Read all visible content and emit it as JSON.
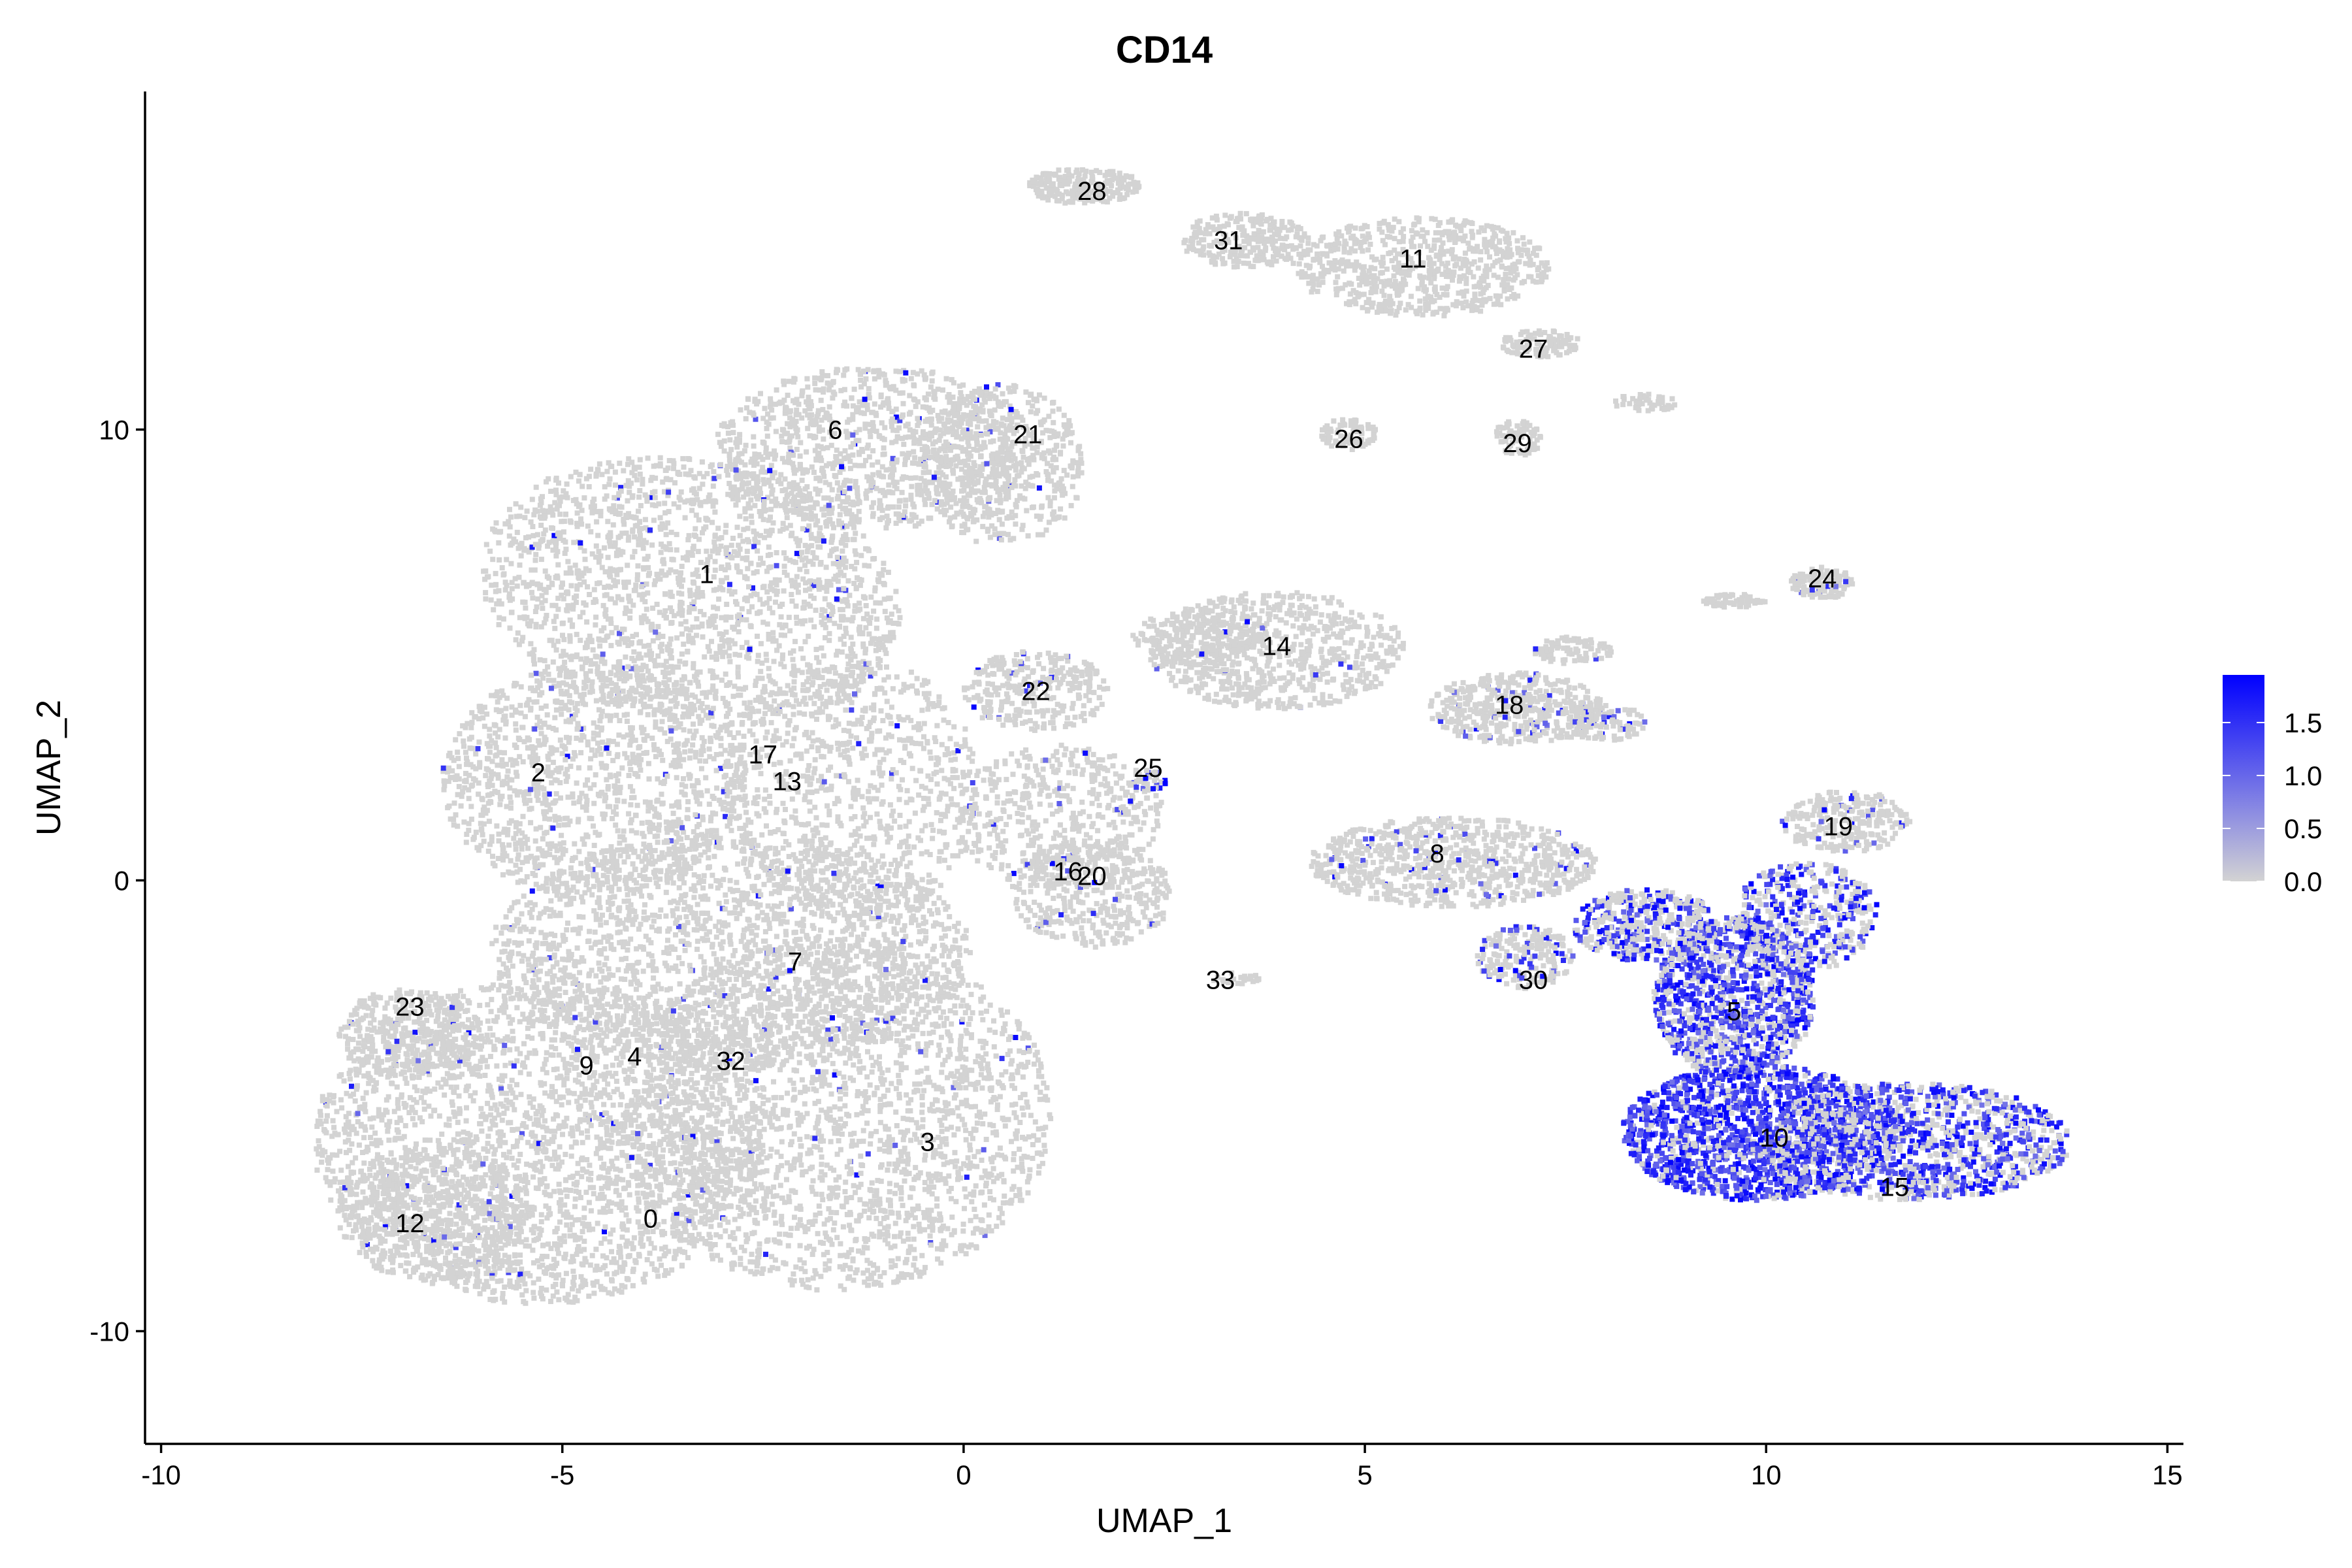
{
  "chart_data": {
    "type": "scatter",
    "title": "CD14",
    "xlabel": "UMAP_1",
    "ylabel": "UMAP_2",
    "xlim": [
      -10.2,
      15.2
    ],
    "ylim": [
      -12.5,
      17.5
    ],
    "x_ticks": [
      -10,
      -5,
      0,
      5,
      10,
      15
    ],
    "x_tick_labels": [
      "-10",
      "-5",
      "0",
      "5",
      "10",
      "15"
    ],
    "y_ticks": [
      -10,
      0,
      10
    ],
    "y_tick_labels": [
      "-10",
      "0",
      "10"
    ],
    "grid": false,
    "legend_position": "right",
    "colors": {
      "low": "#d3d3d3",
      "high": "#0000ff"
    },
    "legend": {
      "min": 0.0,
      "max": 1.95,
      "ticks": [
        0.0,
        0.5,
        1.0,
        1.5
      ],
      "tick_labels": [
        "0.0",
        "0.5",
        "1.0",
        "1.5"
      ]
    },
    "clusters": [
      {
        "label": "0",
        "x": -3.9,
        "y": -7.5
      },
      {
        "label": "1",
        "x": -3.2,
        "y": 6.8
      },
      {
        "label": "2",
        "x": -5.3,
        "y": 2.4
      },
      {
        "label": "3",
        "x": -0.45,
        "y": -5.8
      },
      {
        "label": "4",
        "x": -4.1,
        "y": -3.9
      },
      {
        "label": "5",
        "x": 9.6,
        "y": -2.9
      },
      {
        "label": "6",
        "x": -1.6,
        "y": 10.0
      },
      {
        "label": "7",
        "x": -2.1,
        "y": -1.8
      },
      {
        "label": "8",
        "x": 5.9,
        "y": 0.6
      },
      {
        "label": "9",
        "x": -4.7,
        "y": -4.1
      },
      {
        "label": "10",
        "x": 10.1,
        "y": -5.7
      },
      {
        "label": "11",
        "x": 5.6,
        "y": 13.8
      },
      {
        "label": "12",
        "x": -6.9,
        "y": -7.6
      },
      {
        "label": "13",
        "x": -2.2,
        "y": 2.2
      },
      {
        "label": "14",
        "x": 3.9,
        "y": 5.2
      },
      {
        "label": "15",
        "x": 11.6,
        "y": -6.8
      },
      {
        "label": "16",
        "x": 1.3,
        "y": 0.2
      },
      {
        "label": "17",
        "x": -2.5,
        "y": 2.8
      },
      {
        "label": "18",
        "x": 6.8,
        "y": 3.9
      },
      {
        "label": "19",
        "x": 10.9,
        "y": 1.2
      },
      {
        "label": "20",
        "x": 1.6,
        "y": 0.1
      },
      {
        "label": "21",
        "x": 0.8,
        "y": 9.9
      },
      {
        "label": "22",
        "x": 0.9,
        "y": 4.2
      },
      {
        "label": "23",
        "x": -6.9,
        "y": -2.8
      },
      {
        "label": "24",
        "x": 10.7,
        "y": 6.7
      },
      {
        "label": "25",
        "x": 2.3,
        "y": 2.5
      },
      {
        "label": "26",
        "x": 4.8,
        "y": 9.8
      },
      {
        "label": "27",
        "x": 7.1,
        "y": 11.8
      },
      {
        "label": "28",
        "x": 1.6,
        "y": 15.3
      },
      {
        "label": "29",
        "x": 6.9,
        "y": 9.7
      },
      {
        "label": "30",
        "x": 7.1,
        "y": -2.2
      },
      {
        "label": "31",
        "x": 3.3,
        "y": 14.2
      },
      {
        "label": "32",
        "x": -2.9,
        "y": -4.0
      },
      {
        "label": "33",
        "x": 3.2,
        "y": -2.2
      }
    ]
  }
}
